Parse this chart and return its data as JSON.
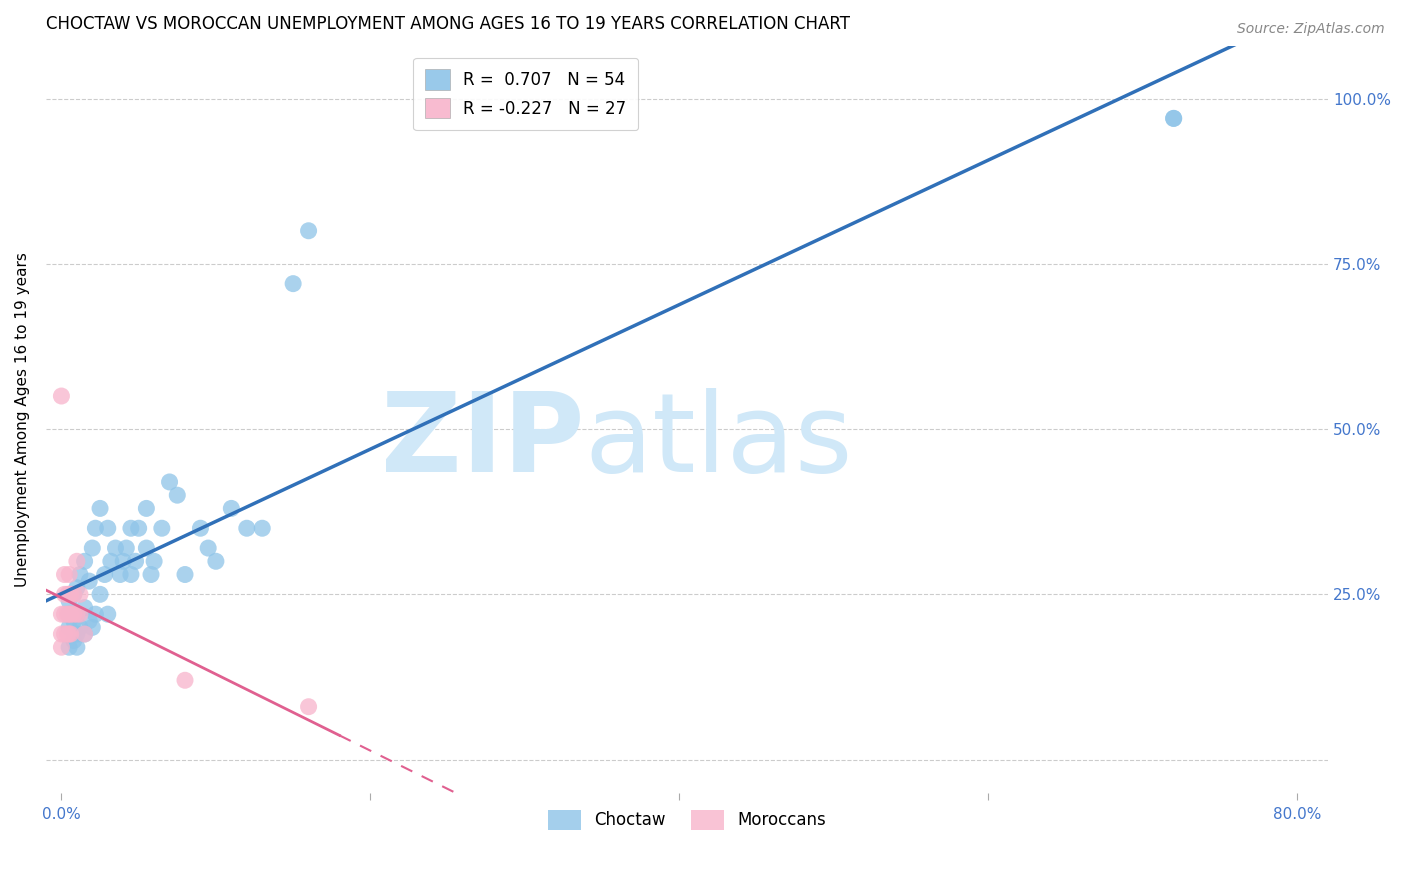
{
  "title": "CHOCTAW VS MOROCCAN UNEMPLOYMENT AMONG AGES 16 TO 19 YEARS CORRELATION CHART",
  "source": "Source: ZipAtlas.com",
  "ylabel": "Unemployment Among Ages 16 to 19 years",
  "xlim": [
    -0.01,
    0.82
  ],
  "ylim": [
    -0.05,
    1.08
  ],
  "xticks": [
    0.0,
    0.2,
    0.4,
    0.6,
    0.8
  ],
  "xticklabels": [
    "0.0%",
    "",
    "",
    "",
    "80.0%"
  ],
  "yticks": [
    0.0,
    0.25,
    0.5,
    0.75,
    1.0
  ],
  "yticklabels": [
    "",
    "25.0%",
    "50.0%",
    "75.0%",
    "100.0%"
  ],
  "choctaw_R": 0.707,
  "choctaw_N": 54,
  "moroccan_R": -0.227,
  "moroccan_N": 27,
  "choctaw_color": "#8ec4e8",
  "moroccan_color": "#f8b4cb",
  "choctaw_line_color": "#3070b8",
  "moroccan_line_color": "#e06090",
  "title_fontsize": 12,
  "axis_label_fontsize": 11,
  "tick_fontsize": 11,
  "legend_fontsize": 12,
  "watermark_zip": "ZIP",
  "watermark_atlas": "atlas",
  "watermark_color": "#d0e8f8",
  "choctaw_x": [
    0.005,
    0.005,
    0.005,
    0.005,
    0.008,
    0.008,
    0.008,
    0.01,
    0.01,
    0.01,
    0.01,
    0.012,
    0.012,
    0.015,
    0.015,
    0.015,
    0.018,
    0.018,
    0.02,
    0.02,
    0.022,
    0.022,
    0.025,
    0.025,
    0.028,
    0.03,
    0.03,
    0.032,
    0.035,
    0.038,
    0.04,
    0.042,
    0.045,
    0.045,
    0.048,
    0.05,
    0.055,
    0.055,
    0.058,
    0.06,
    0.065,
    0.07,
    0.075,
    0.08,
    0.09,
    0.095,
    0.1,
    0.11,
    0.12,
    0.13,
    0.15,
    0.16,
    0.72,
    0.72
  ],
  "choctaw_y": [
    0.17,
    0.2,
    0.22,
    0.24,
    0.18,
    0.21,
    0.25,
    0.17,
    0.19,
    0.22,
    0.26,
    0.2,
    0.28,
    0.19,
    0.23,
    0.3,
    0.21,
    0.27,
    0.2,
    0.32,
    0.22,
    0.35,
    0.25,
    0.38,
    0.28,
    0.22,
    0.35,
    0.3,
    0.32,
    0.28,
    0.3,
    0.32,
    0.28,
    0.35,
    0.3,
    0.35,
    0.32,
    0.38,
    0.28,
    0.3,
    0.35,
    0.42,
    0.4,
    0.28,
    0.35,
    0.32,
    0.3,
    0.38,
    0.35,
    0.35,
    0.72,
    0.8,
    0.97,
    0.97
  ],
  "moroccan_x": [
    0.0,
    0.0,
    0.0,
    0.0,
    0.002,
    0.002,
    0.002,
    0.002,
    0.004,
    0.004,
    0.004,
    0.005,
    0.005,
    0.005,
    0.005,
    0.006,
    0.006,
    0.006,
    0.008,
    0.008,
    0.01,
    0.01,
    0.012,
    0.012,
    0.015,
    0.08,
    0.16
  ],
  "moroccan_y": [
    0.17,
    0.19,
    0.22,
    0.55,
    0.19,
    0.22,
    0.25,
    0.28,
    0.19,
    0.22,
    0.25,
    0.19,
    0.22,
    0.25,
    0.28,
    0.19,
    0.22,
    0.25,
    0.22,
    0.25,
    0.22,
    0.3,
    0.22,
    0.25,
    0.19,
    0.12,
    0.08
  ],
  "background_color": "#ffffff",
  "grid_color": "#cccccc",
  "tick_color": "#4477cc",
  "right_ytick_color": "#4477cc"
}
